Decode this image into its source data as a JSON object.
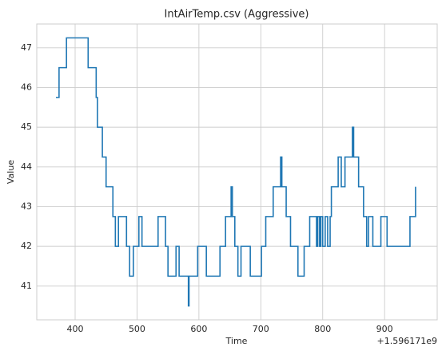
{
  "chart_data": {
    "type": "line",
    "title": "IntAirTemp.csv (Aggressive)",
    "xlabel": "Time",
    "ylabel": "Value",
    "offset_label": "+1.596171e9",
    "drawstyle": "steps-post",
    "grid": true,
    "xlim": [
      338,
      985
    ],
    "ylim": [
      40.15,
      47.6
    ],
    "xticks": [
      400,
      500,
      600,
      700,
      800,
      900
    ],
    "yticks": [
      41,
      42,
      43,
      44,
      45,
      46,
      47
    ],
    "series": [
      {
        "name": "IntAirTemp",
        "color": "#1f77b4",
        "x": [
          369,
          374,
          386,
          421,
          434,
          436,
          444,
          450,
          461,
          465,
          470,
          483,
          488,
          494,
          503,
          508,
          534,
          546,
          550,
          563,
          568,
          583,
          584,
          598,
          612,
          634,
          643,
          652,
          654,
          658,
          663,
          668,
          683,
          701,
          708,
          720,
          732,
          734,
          741,
          748,
          760,
          770,
          779,
          790,
          792,
          795,
          797,
          800,
          804,
          808,
          812,
          814,
          825,
          830,
          836,
          848,
          850,
          858,
          866,
          871,
          874,
          881,
          894,
          904,
          941,
          950
        ],
        "values": [
          45.75,
          46.5,
          47.25,
          46.5,
          45.75,
          45,
          44.25,
          43.5,
          42.75,
          42,
          42.75,
          42,
          41.25,
          42,
          42.75,
          42,
          42.75,
          42,
          41.25,
          42,
          41.25,
          40.5,
          41.25,
          42,
          41.25,
          42,
          42.75,
          43.5,
          42.75,
          42,
          41.25,
          42,
          41.25,
          42,
          42.75,
          43.5,
          44.25,
          43.5,
          42.75,
          42,
          41.25,
          42,
          42.75,
          42,
          42.75,
          42,
          42.75,
          42,
          42.75,
          42,
          42.75,
          43.5,
          44.25,
          43.5,
          44.25,
          45,
          44.25,
          43.5,
          42.75,
          42,
          42.75,
          42,
          42.75,
          42,
          42.75,
          43.5
        ]
      }
    ]
  }
}
